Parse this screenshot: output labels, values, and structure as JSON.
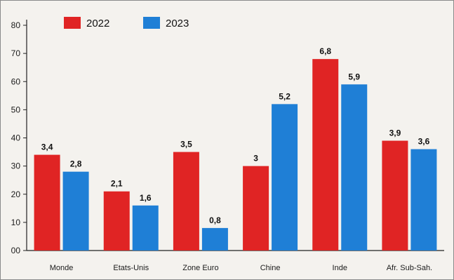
{
  "chart_data": {
    "type": "bar",
    "categories": [
      "Monde",
      "Etats-Unis",
      "Zone Euro",
      "Chine",
      "Inde",
      "Afr. Sub-Sah."
    ],
    "series": [
      {
        "name": "2022",
        "color": "#e02424",
        "values": [
          34,
          21,
          35,
          30,
          68,
          39
        ],
        "labels": [
          "3,4",
          "2,1",
          "3,5",
          "3",
          "6,8",
          "3,9"
        ]
      },
      {
        "name": "2023",
        "color": "#1f7fd6",
        "values": [
          28,
          16,
          8,
          52,
          59,
          36
        ],
        "labels": [
          "2,8",
          "1,6",
          "0,8",
          "5,2",
          "5,9",
          "3,6"
        ]
      }
    ],
    "yticks": [
      "00",
      "10",
      "20",
      "30",
      "40",
      "50",
      "60",
      "70",
      "80"
    ],
    "ylim": [
      0,
      80
    ],
    "grid": false,
    "legend_position": "top-left"
  }
}
